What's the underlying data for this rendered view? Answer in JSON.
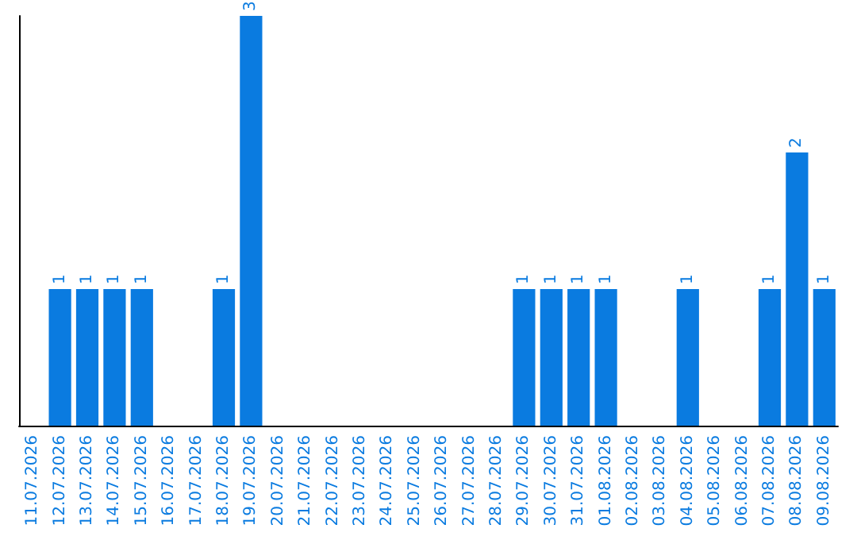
{
  "chart_data": {
    "type": "bar",
    "categories": [
      "11.07.2026",
      "12.07.2026",
      "13.07.2026",
      "14.07.2026",
      "15.07.2026",
      "16.07.2026",
      "17.07.2026",
      "18.07.2026",
      "19.07.2026",
      "20.07.2026",
      "21.07.2026",
      "22.07.2026",
      "23.07.2026",
      "24.07.2026",
      "25.07.2026",
      "26.07.2026",
      "27.07.2026",
      "28.07.2026",
      "29.07.2026",
      "30.07.2026",
      "31.07.2026",
      "01.08.2026",
      "02.08.2026",
      "03.08.2026",
      "04.08.2026",
      "05.08.2026",
      "06.08.2026",
      "07.08.2026",
      "08.08.2026",
      "09.08.2026"
    ],
    "values": [
      0,
      1,
      1,
      1,
      1,
      0,
      0,
      1,
      3,
      0,
      0,
      0,
      0,
      0,
      0,
      0,
      0,
      0,
      1,
      1,
      1,
      1,
      0,
      0,
      1,
      0,
      0,
      1,
      2,
      1
    ],
    "value_labels": [
      null,
      "1",
      "1",
      "1",
      "1",
      null,
      null,
      "1",
      "3",
      null,
      null,
      null,
      null,
      null,
      null,
      null,
      null,
      null,
      "1",
      "1",
      "1",
      "1",
      null,
      null,
      "1",
      null,
      null,
      "1",
      "2",
      "1"
    ],
    "color": "#0a7be0",
    "grid": false,
    "tick_labels": "x"
  }
}
